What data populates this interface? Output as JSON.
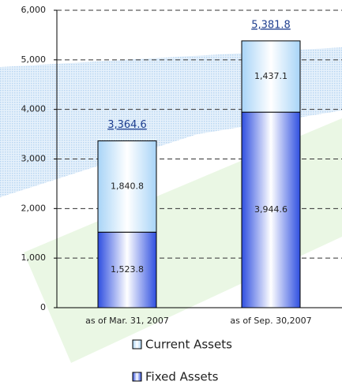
{
  "chart_data": {
    "type": "stacked_bar",
    "categories": [
      "as of Mar. 31, 2007",
      "as of Sep. 30,2007"
    ],
    "series": [
      {
        "name": "Fixed Assets",
        "color": "#2f4fe0",
        "values": [
          1523.8,
          3944.6
        ],
        "value_labels": [
          "1,523.8",
          "3,944.6"
        ]
      },
      {
        "name": "Current Assets",
        "color": "#a8d4f7",
        "values": [
          1840.8,
          1437.1
        ],
        "value_labels": [
          "1,840.8",
          "1,437.1"
        ]
      }
    ],
    "totals": [
      3364.6,
      5381.8
    ],
    "total_labels": [
      "3,364.6",
      "5,381.8"
    ],
    "ylim": [
      0,
      6000
    ],
    "yticks": [
      0,
      {
        "value": 1000,
        "label": "1,000"
      },
      {
        "value": 2000,
        "label": "2,000"
      },
      {
        "value": 3000,
        "label": "3,000"
      },
      {
        "value": 4000,
        "label": "4,000"
      },
      {
        "value": 5000,
        "label": "5,000"
      },
      {
        "value": 6000,
        "label": "6,000"
      }
    ],
    "grid": true
  }
}
